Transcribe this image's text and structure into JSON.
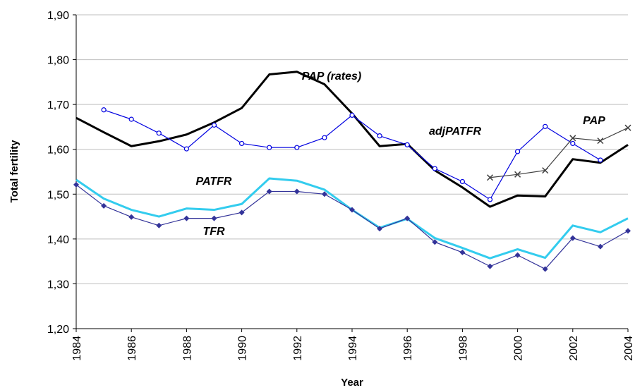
{
  "chart_data": {
    "type": "line",
    "x_label": "Year",
    "y_label": "Total fertility",
    "x": [
      1984,
      1985,
      1986,
      1987,
      1988,
      1989,
      1990,
      1991,
      1992,
      1993,
      1994,
      1995,
      1996,
      1997,
      1998,
      1999,
      2000,
      2001,
      2002,
      2003,
      2004
    ],
    "xlim": [
      1984,
      2004
    ],
    "xticks": [
      1984,
      1986,
      1988,
      1990,
      1992,
      1994,
      1996,
      1998,
      2000,
      2002,
      2004
    ],
    "ylim": [
      1.2,
      1.9
    ],
    "yticks": [
      {
        "value": 1.2,
        "label": "1,20"
      },
      {
        "value": 1.3,
        "label": "1,30"
      },
      {
        "value": 1.4,
        "label": "1,40"
      },
      {
        "value": 1.5,
        "label": "1,50"
      },
      {
        "value": 1.6,
        "label": "1,60"
      },
      {
        "value": 1.7,
        "label": "1,70"
      },
      {
        "value": 1.8,
        "label": "1,80"
      },
      {
        "value": 1.9,
        "label": "1,90"
      }
    ],
    "grid": true,
    "series": [
      {
        "name": "PAP (rates)",
        "color": "#000000",
        "marker": "none",
        "line_width": 3,
        "values": [
          1.67,
          1.638,
          1.607,
          1.618,
          1.633,
          1.66,
          1.692,
          1.767,
          1.773,
          1.745,
          1.68,
          1.607,
          1.612,
          1.553,
          1.515,
          1.472,
          1.497,
          1.495,
          1.578,
          1.57,
          1.61
        ]
      },
      {
        "name": "adjPATFR",
        "color": "#0000e0",
        "marker": "circle",
        "line_width": 1.2,
        "values": [
          null,
          1.688,
          1.667,
          1.636,
          1.601,
          1.654,
          1.613,
          1.604,
          1.604,
          1.626,
          1.676,
          1.63,
          1.61,
          1.557,
          1.528,
          1.488,
          1.595,
          1.651,
          1.613,
          1.576,
          null
        ]
      },
      {
        "name": "PAP",
        "color": "#404040",
        "marker": "x",
        "line_width": 1.2,
        "values": [
          null,
          null,
          null,
          null,
          null,
          null,
          null,
          null,
          null,
          null,
          null,
          null,
          null,
          null,
          null,
          1.537,
          1.544,
          1.553,
          1.625,
          1.619,
          1.648
        ]
      },
      {
        "name": "PATFR",
        "color": "#33ccee",
        "marker": "none",
        "line_width": 3,
        "values": [
          1.532,
          1.49,
          1.465,
          1.45,
          1.468,
          1.465,
          1.478,
          1.535,
          1.53,
          1.51,
          1.465,
          1.425,
          1.445,
          1.402,
          1.38,
          1.357,
          1.377,
          1.358,
          1.43,
          1.415,
          1.446
        ]
      },
      {
        "name": "TFR",
        "color": "#333399",
        "marker": "diamond",
        "line_width": 1.2,
        "values": [
          1.521,
          1.474,
          1.449,
          1.43,
          1.446,
          1.446,
          1.459,
          1.506,
          1.506,
          1.5,
          1.465,
          1.423,
          1.446,
          1.393,
          1.37,
          1.339,
          1.364,
          1.333,
          1.402,
          1.383,
          1.418
        ]
      }
    ]
  }
}
